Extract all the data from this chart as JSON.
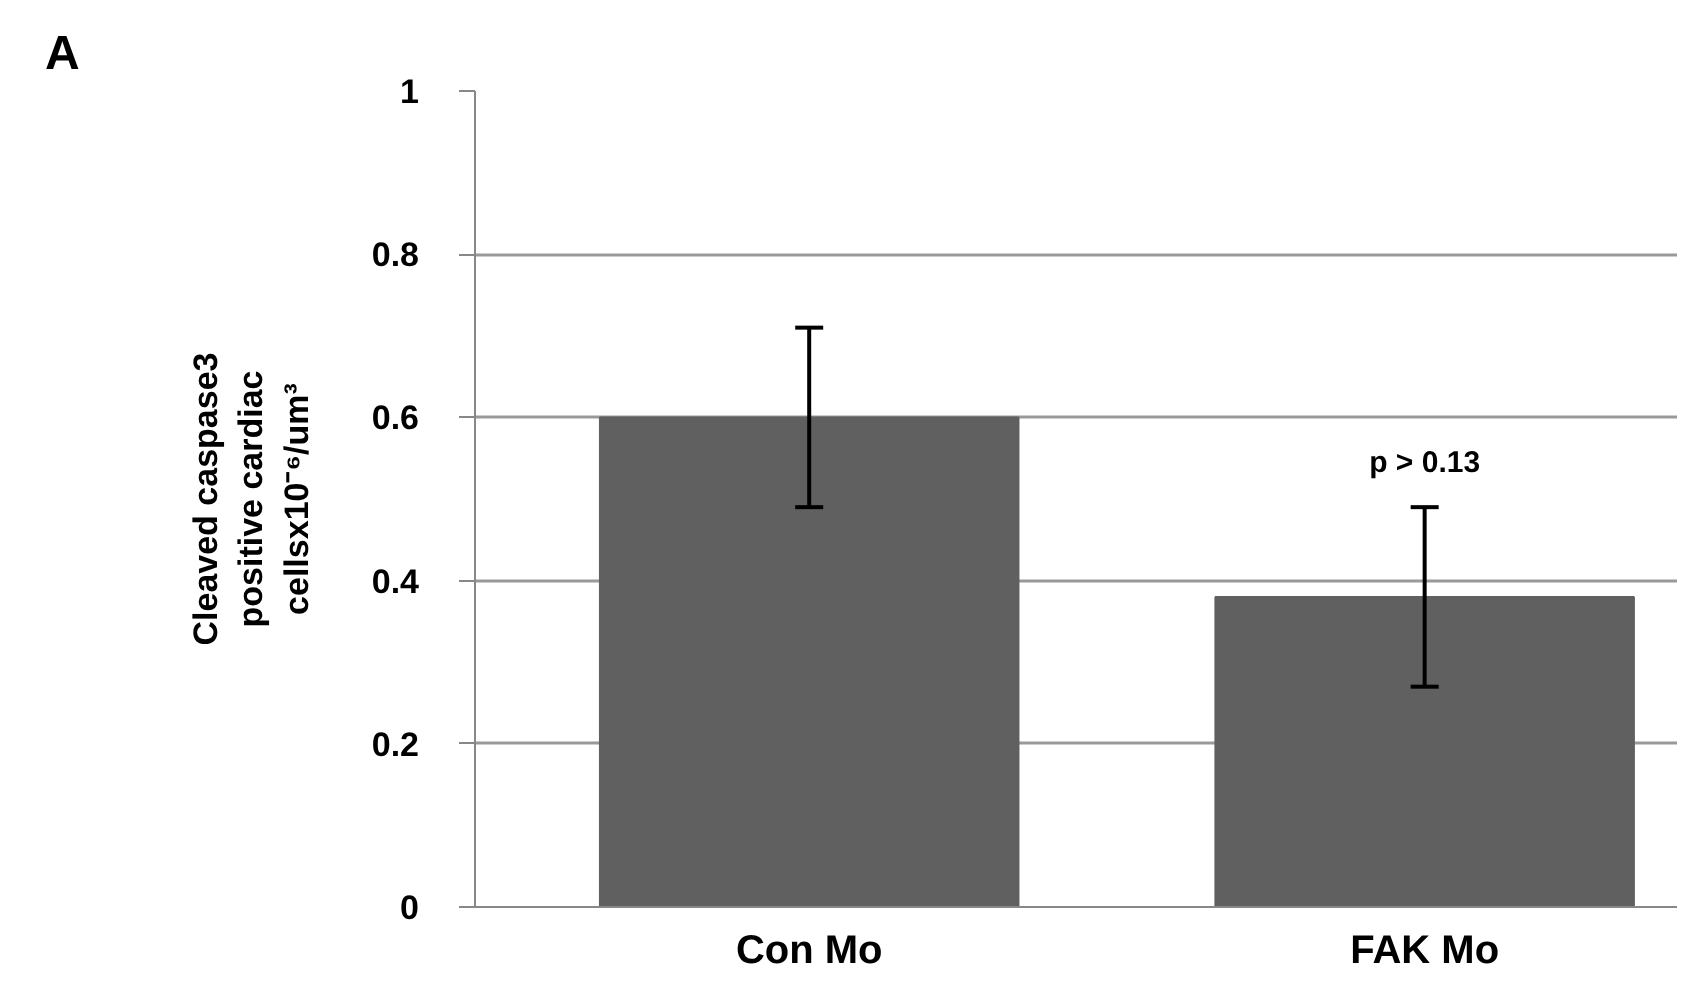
{
  "chart_data": {
    "type": "bar",
    "title": "A",
    "ylabel": "Cleaved caspase3\npositive cardiac\ncellsx10⁻⁶/um³",
    "categories": [
      "Con Mo",
      "FAK Mo"
    ],
    "values": [
      0.6,
      0.38
    ],
    "color": "#606060",
    "errors": [
      [
        0.49,
        0.71
      ],
      [
        0.27,
        0.49
      ]
    ],
    "ylim": [
      0,
      1
    ],
    "yticks": [
      0,
      0.2,
      0.4,
      0.6,
      0.8,
      1
    ],
    "grid": "y",
    "annotations": [
      "p > 0.13"
    ]
  }
}
